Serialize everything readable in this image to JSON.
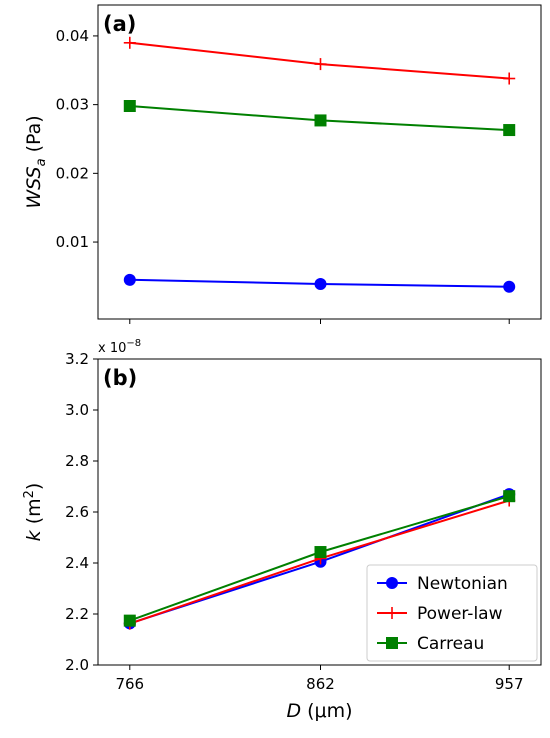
{
  "chart_data": [
    {
      "type": "line",
      "panel_label": "(a)",
      "ylabel": {
        "main": "WSS",
        "sub": "a",
        "unit": " (Pa)"
      },
      "x": [
        766,
        862,
        957
      ],
      "xlim": [
        750,
        973
      ],
      "ylim": [
        -0.0012,
        0.0445
      ],
      "yticks": [
        0.01,
        0.02,
        0.03,
        0.04
      ],
      "ytick_labels": [
        "0.01",
        "0.02",
        "0.03",
        "0.04"
      ],
      "show_xtick_labels": false,
      "series": [
        {
          "name": "Newtonian",
          "color": "#0000ff",
          "marker": "circle",
          "values": [
            0.0045,
            0.0039,
            0.0035
          ]
        },
        {
          "name": "Power-law",
          "color": "#ff0000",
          "marker": "plus",
          "values": [
            0.039,
            0.0359,
            0.0338
          ]
        },
        {
          "name": "Carreau",
          "color": "#008000",
          "marker": "square",
          "values": [
            0.0298,
            0.0277,
            0.0263
          ]
        }
      ]
    },
    {
      "type": "line",
      "panel_label": "(b)",
      "ylabel": {
        "main": "k",
        "unit_prefix": " (m",
        "sup": "2",
        "unit_suffix": ")"
      },
      "xlabel": {
        "main": "D",
        "unit": " (μm)"
      },
      "sci_note": {
        "prefix": "x 10",
        "exp": "−8"
      },
      "x": [
        766,
        862,
        957
      ],
      "xlim": [
        750,
        973
      ],
      "ylim": [
        2.0,
        3.2
      ],
      "yticks": [
        2.0,
        2.2,
        2.4,
        2.6,
        2.8,
        3.0,
        3.2
      ],
      "ytick_labels": [
        "2.0",
        "2.2",
        "2.4",
        "2.6",
        "2.8",
        "3.0",
        "3.2"
      ],
      "xticks": [
        766,
        862,
        957
      ],
      "xtick_labels": [
        "766",
        "862",
        "957"
      ],
      "legend": {
        "placement": "lower-right"
      },
      "series": [
        {
          "name": "Newtonian",
          "color": "#0000ff",
          "marker": "circle",
          "values": [
            2.163,
            2.405,
            2.67
          ]
        },
        {
          "name": "Power-law",
          "color": "#ff0000",
          "marker": "plus",
          "values": [
            2.162,
            2.418,
            2.645
          ]
        },
        {
          "name": "Carreau",
          "color": "#008000",
          "marker": "square",
          "values": [
            2.174,
            2.443,
            2.662
          ]
        }
      ]
    }
  ]
}
